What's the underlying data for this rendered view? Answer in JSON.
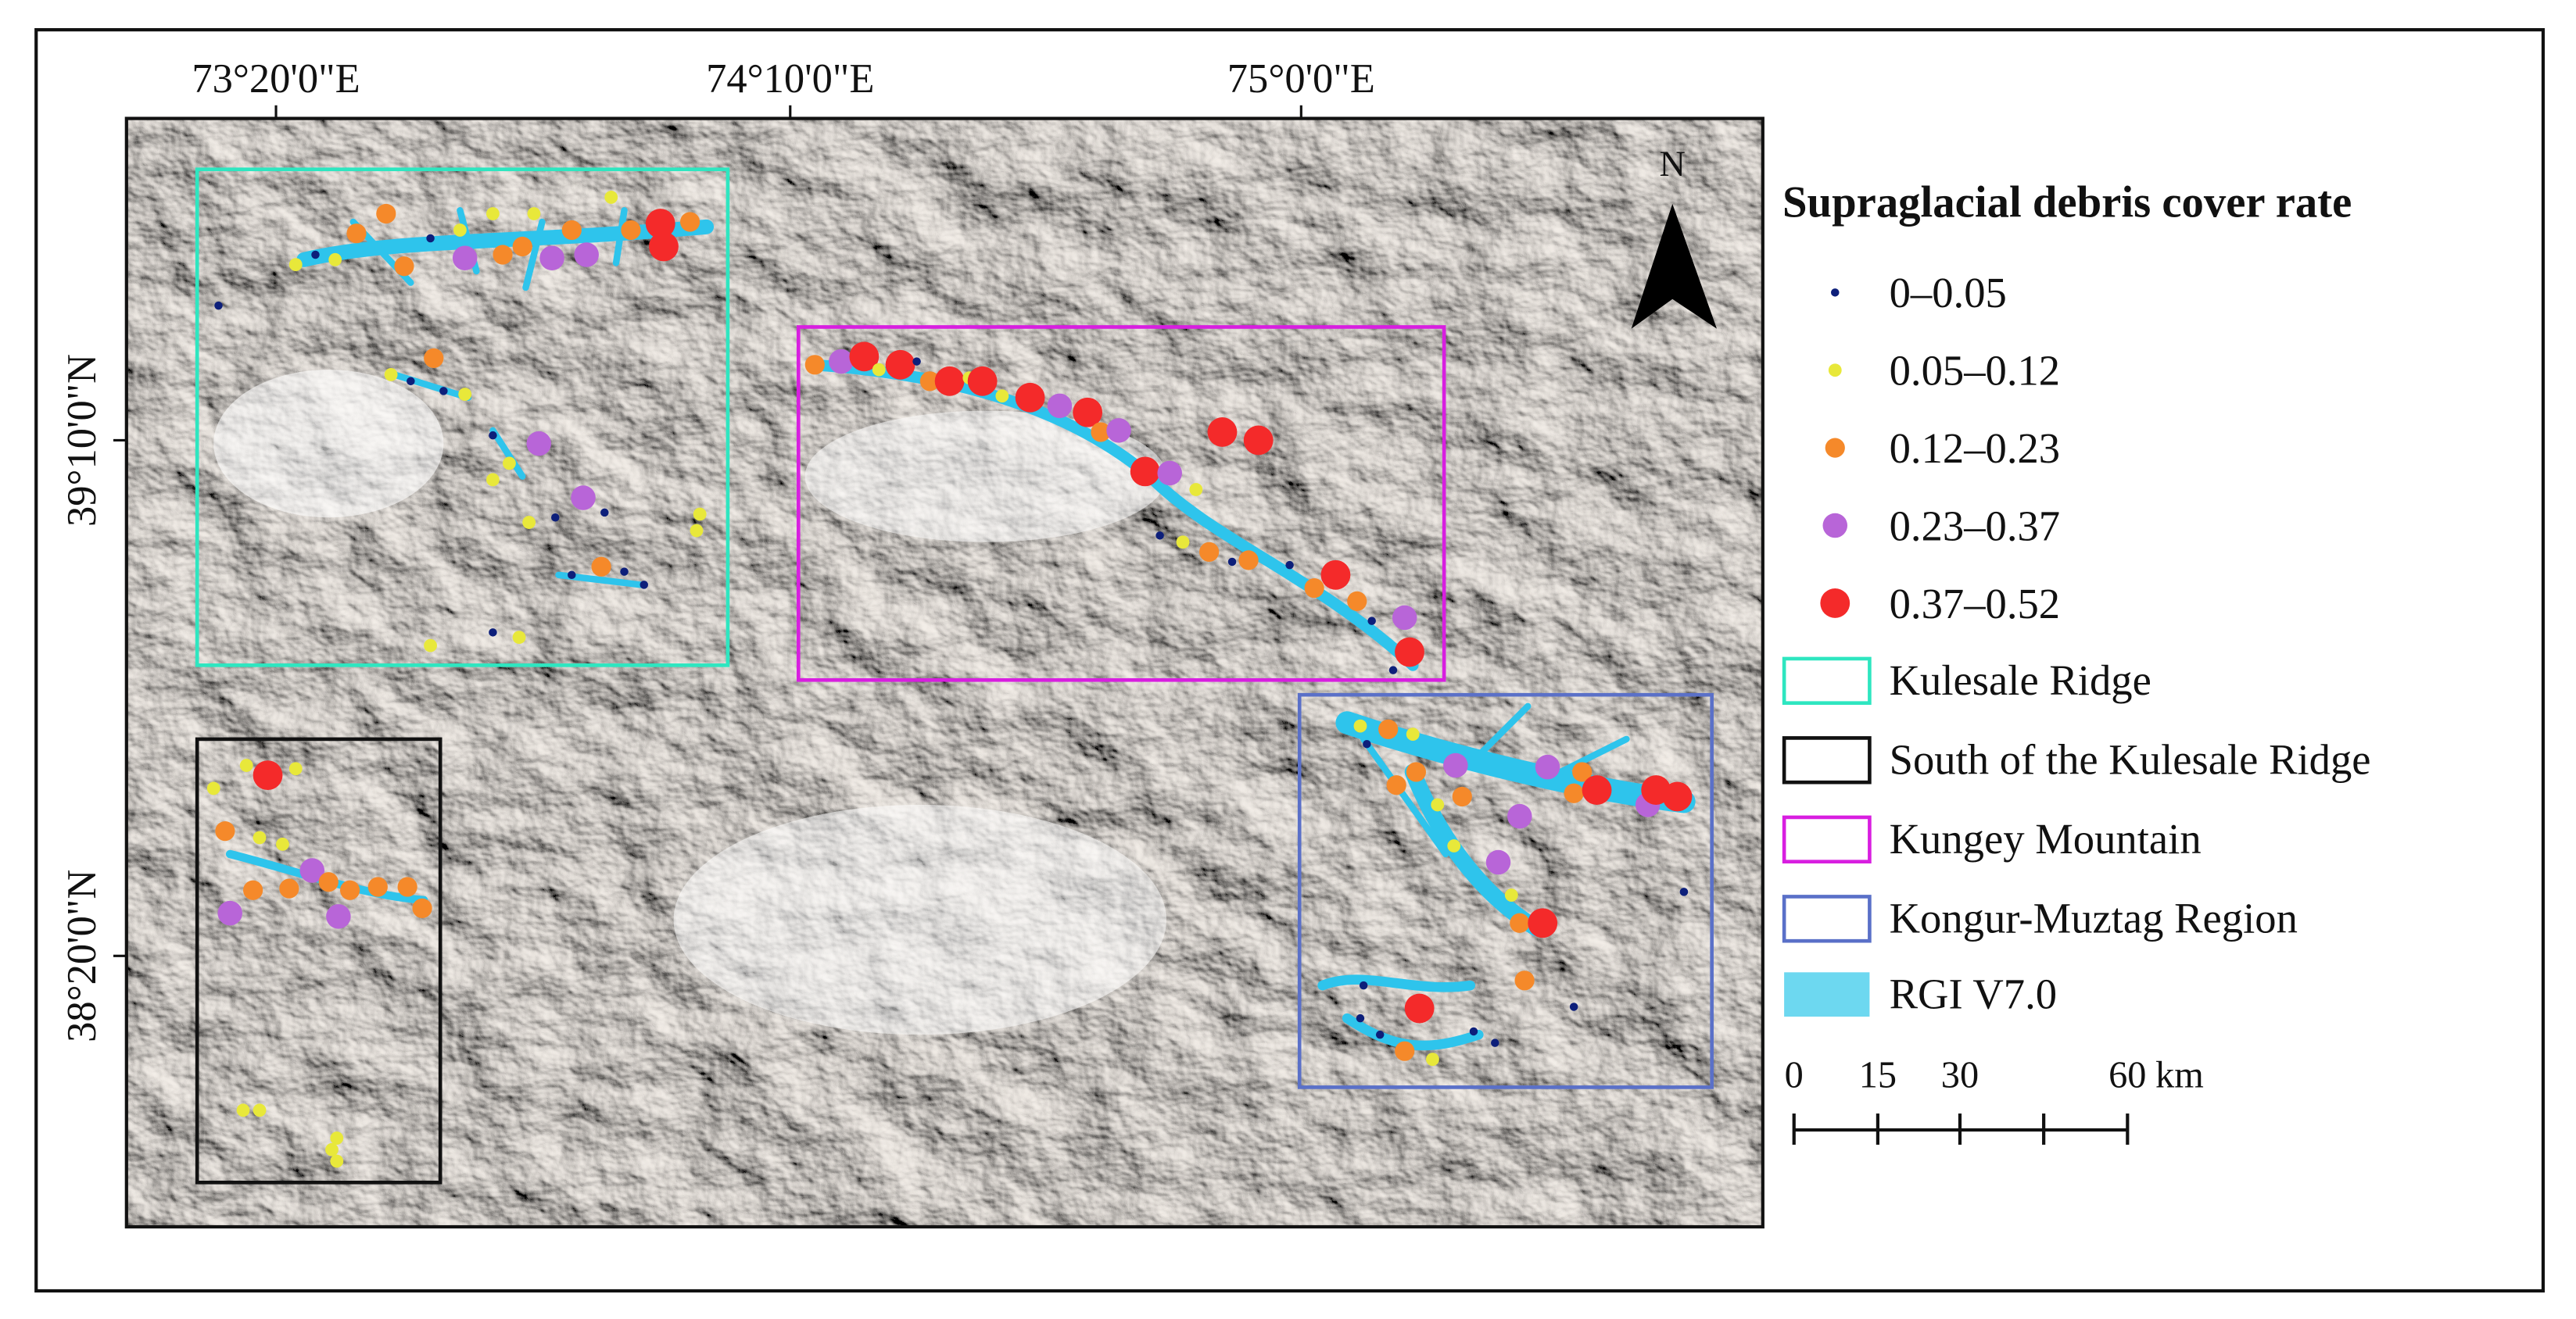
{
  "map": {
    "x_labels": [
      "73°20'0\"E",
      "74°10'0\"E",
      "75°0'0\"E"
    ],
    "y_labels": [
      "39°10'0\"N",
      "38°20'0\"N"
    ]
  },
  "north": "N",
  "legend": {
    "title": "Supraglacial debris cover rate",
    "classes": [
      {
        "label": "0–0.05",
        "color": "#0d1f7a"
      },
      {
        "label": "0.05–0.12",
        "color": "#e8e83a"
      },
      {
        "label": "0.12–0.23",
        "color": "#f5892a"
      },
      {
        "label": "0.23–0.37",
        "color": "#b865d8"
      },
      {
        "label": "0.37–0.52",
        "color": "#f42a2a"
      }
    ],
    "regions": [
      {
        "label": "Kulesale Ridge",
        "color": "#2ee6c0"
      },
      {
        "label": "South of the Kulesale Ridge",
        "color": "#111111"
      },
      {
        "label": "Kungey Mountain",
        "color": "#d81ee0"
      },
      {
        "label": "Kongur-Muztag Region",
        "color": "#5a70c8"
      }
    ],
    "rgi": {
      "label": "RGI V7.0",
      "color": "#6dd8f0"
    }
  },
  "scale": {
    "labels": [
      "0",
      "15",
      "30",
      "60"
    ],
    "unit": "km"
  }
}
